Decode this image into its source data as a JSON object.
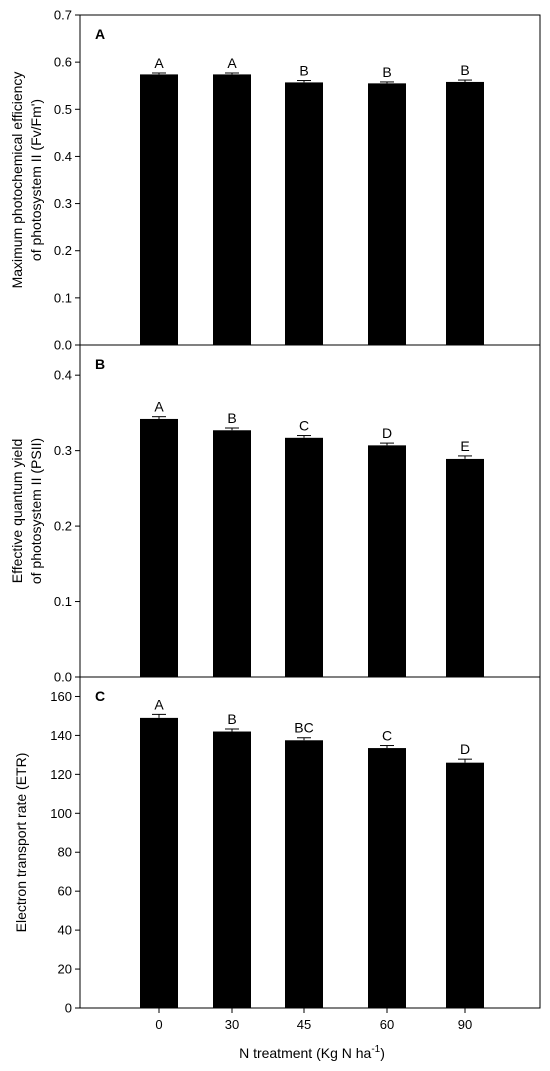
{
  "chart_data": {
    "type": "bar",
    "shared_x": {
      "categories": [
        "0",
        "30",
        "45",
        "60",
        "90"
      ],
      "xlabel_main": "N treatment (Kg N ha",
      "xlabel_sup": "-1",
      "xlabel_close": ")"
    },
    "panels": [
      {
        "letter": "A",
        "ylabel_lines": [
          "Maximum photochemical efficiency",
          "of photosystem II (Fv/Fm')"
        ],
        "ylim": [
          0,
          0.7
        ],
        "yticks": [
          0.0,
          0.1,
          0.2,
          0.3,
          0.4,
          0.5,
          0.6,
          0.7
        ],
        "ytick_labels": [
          "0.0",
          "0.1",
          "0.2",
          "0.3",
          "0.4",
          "0.5",
          "0.6",
          "0.7"
        ],
        "values": [
          0.574,
          0.574,
          0.557,
          0.555,
          0.558
        ],
        "errors": [
          0.003,
          0.003,
          0.004,
          0.003,
          0.004
        ],
        "significance": [
          "A",
          "A",
          "B",
          "B",
          "B"
        ]
      },
      {
        "letter": "B",
        "ylabel_lines": [
          "Effective quantum yield",
          "of photosystem II (PSII)"
        ],
        "ylim": [
          0,
          0.44
        ],
        "yticks": [
          0.0,
          0.1,
          0.2,
          0.3,
          0.4
        ],
        "ytick_labels": [
          "0.0",
          "0.1",
          "0.2",
          "0.3",
          "0.4"
        ],
        "values": [
          0.342,
          0.327,
          0.317,
          0.307,
          0.289
        ],
        "errors": [
          0.003,
          0.003,
          0.003,
          0.003,
          0.004
        ],
        "significance": [
          "A",
          "B",
          "C",
          "D",
          "E"
        ]
      },
      {
        "letter": "C",
        "ylabel_lines": [
          "Electron transport rate (ETR)"
        ],
        "ylim": [
          0,
          170
        ],
        "yticks": [
          0,
          20,
          40,
          60,
          80,
          100,
          120,
          140,
          160
        ],
        "ytick_labels": [
          "0",
          "20",
          "40",
          "60",
          "80",
          "100",
          "120",
          "140",
          "160"
        ],
        "values": [
          149,
          142,
          137.5,
          133.5,
          126
        ],
        "errors": [
          1.8,
          1.3,
          1.3,
          1.3,
          1.8
        ],
        "significance": [
          "A",
          "B",
          "BC",
          "C",
          "D"
        ]
      }
    ],
    "bar_color": "#000000",
    "grid": false,
    "legend": "none"
  }
}
